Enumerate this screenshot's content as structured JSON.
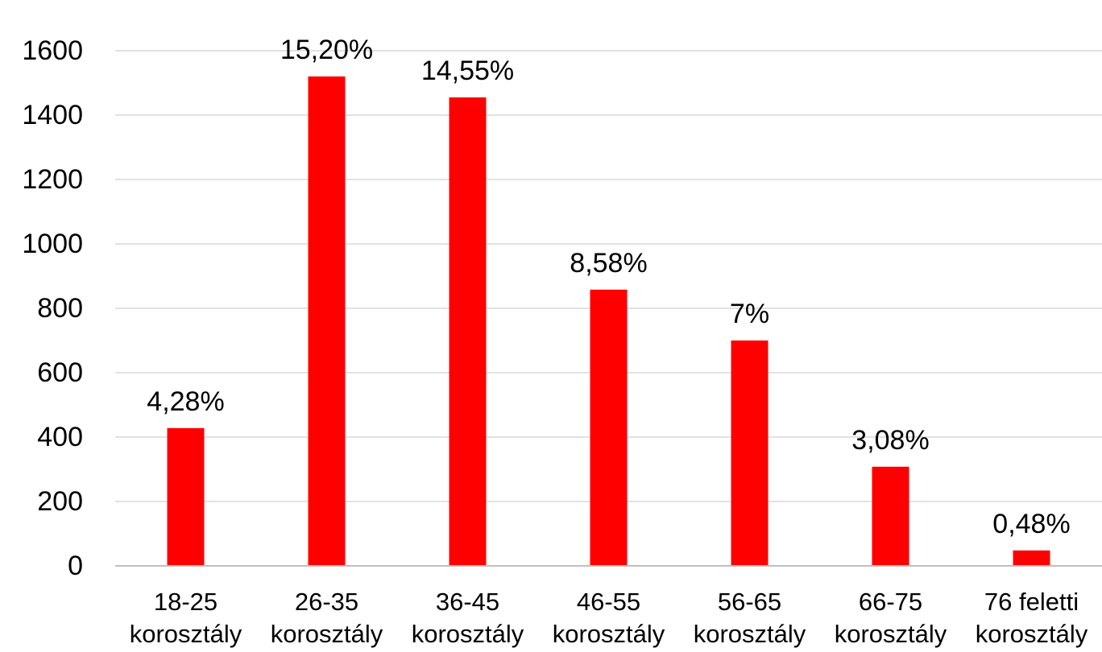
{
  "chart_data": {
    "type": "bar",
    "categories": [
      [
        "18-25",
        "korosztály"
      ],
      [
        "26-35",
        "korosztály"
      ],
      [
        "36-45",
        "korosztály"
      ],
      [
        "46-55",
        "korosztály"
      ],
      [
        "56-65",
        "korosztály"
      ],
      [
        "66-75",
        "korosztály"
      ],
      [
        "76 feletti",
        "korosztály"
      ]
    ],
    "values": [
      428,
      1520,
      1455,
      858,
      700,
      308,
      48
    ],
    "data_labels": [
      "4,28%",
      "15,20%",
      "14,55%",
      "8,58%",
      "7%",
      "3,08%",
      "0,48%"
    ],
    "ylim": [
      0,
      1600
    ],
    "yticks": [
      0,
      200,
      400,
      600,
      800,
      1000,
      1200,
      1400,
      1600
    ],
    "ytick_labels": [
      "0",
      "200",
      "400",
      "600",
      "800",
      "1000",
      "1200",
      "1400",
      "1600"
    ],
    "grid": true,
    "legend": "none",
    "title": "",
    "xlabel": "",
    "ylabel": "",
    "colors": {
      "bar": "#ff0000",
      "grid": "#d9d9d9",
      "axis": "#bfbfbf",
      "text": "#000000"
    }
  }
}
